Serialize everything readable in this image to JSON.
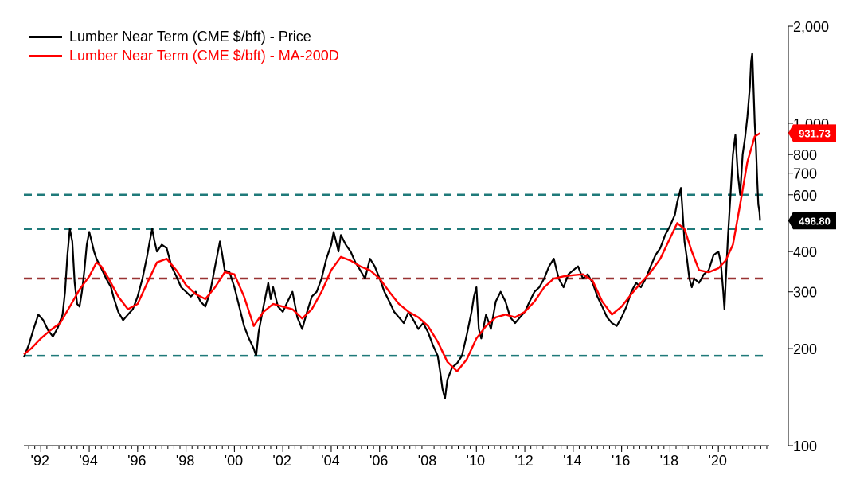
{
  "chart_data": {
    "type": "line",
    "title": "",
    "xlabel": "",
    "ylabel": "",
    "y_scale": "log",
    "ylim": [
      100,
      2000
    ],
    "xlim": [
      1991.3,
      2022.1
    ],
    "y_ticks": [
      {
        "value": 2000,
        "label": "2,000"
      },
      {
        "value": 1000,
        "label": "1,000"
      },
      {
        "value": 800,
        "label": "800"
      },
      {
        "value": 700,
        "label": "700"
      },
      {
        "value": 600,
        "label": "600"
      },
      {
        "value": 400,
        "label": "400"
      },
      {
        "value": 300,
        "label": "300"
      },
      {
        "value": 200,
        "label": "200"
      },
      {
        "value": 100,
        "label": "100"
      }
    ],
    "x_ticks": [
      {
        "value": 1992,
        "label": "'92"
      },
      {
        "value": 1994,
        "label": "'94"
      },
      {
        "value": 1996,
        "label": "'96"
      },
      {
        "value": 1998,
        "label": "'98"
      },
      {
        "value": 2000,
        "label": "'00"
      },
      {
        "value": 2002,
        "label": "'02"
      },
      {
        "value": 2004,
        "label": "'04"
      },
      {
        "value": 2006,
        "label": "'06"
      },
      {
        "value": 2008,
        "label": "'08"
      },
      {
        "value": 2010,
        "label": "'10"
      },
      {
        "value": 2012,
        "label": "'12"
      },
      {
        "value": 2014,
        "label": "'14"
      },
      {
        "value": 2016,
        "label": "'16"
      },
      {
        "value": 2018,
        "label": "'18"
      },
      {
        "value": 2020,
        "label": "'20"
      }
    ],
    "legend_position": "top-left",
    "series": [
      {
        "name": "Lumber Near Term (CME $/bft) - Price",
        "color": "#000000",
        "points": [
          [
            1991.3,
            188
          ],
          [
            1991.5,
            205
          ],
          [
            1991.7,
            230
          ],
          [
            1991.9,
            255
          ],
          [
            1992.1,
            245
          ],
          [
            1992.3,
            228
          ],
          [
            1992.5,
            218
          ],
          [
            1992.7,
            232
          ],
          [
            1992.9,
            255
          ],
          [
            1993.0,
            300
          ],
          [
            1993.1,
            390
          ],
          [
            1993.2,
            470
          ],
          [
            1993.3,
            430
          ],
          [
            1993.4,
            320
          ],
          [
            1993.5,
            275
          ],
          [
            1993.6,
            270
          ],
          [
            1993.7,
            300
          ],
          [
            1993.8,
            350
          ],
          [
            1993.9,
            420
          ],
          [
            1994.0,
            460
          ],
          [
            1994.1,
            430
          ],
          [
            1994.2,
            400
          ],
          [
            1994.3,
            380
          ],
          [
            1994.5,
            355
          ],
          [
            1994.7,
            330
          ],
          [
            1994.9,
            310
          ],
          [
            1995.0,
            290
          ],
          [
            1995.2,
            260
          ],
          [
            1995.4,
            245
          ],
          [
            1995.6,
            255
          ],
          [
            1995.8,
            265
          ],
          [
            1996.0,
            290
          ],
          [
            1996.2,
            330
          ],
          [
            1996.4,
            390
          ],
          [
            1996.5,
            430
          ],
          [
            1996.6,
            470
          ],
          [
            1996.7,
            430
          ],
          [
            1996.8,
            400
          ],
          [
            1997.0,
            420
          ],
          [
            1997.2,
            410
          ],
          [
            1997.4,
            360
          ],
          [
            1997.6,
            335
          ],
          [
            1997.8,
            310
          ],
          [
            1998.0,
            300
          ],
          [
            1998.2,
            290
          ],
          [
            1998.4,
            300
          ],
          [
            1998.6,
            280
          ],
          [
            1998.8,
            270
          ],
          [
            1999.0,
            300
          ],
          [
            1999.2,
            360
          ],
          [
            1999.4,
            430
          ],
          [
            1999.5,
            390
          ],
          [
            1999.6,
            350
          ],
          [
            1999.8,
            345
          ],
          [
            2000.0,
            310
          ],
          [
            2000.2,
            270
          ],
          [
            2000.4,
            235
          ],
          [
            2000.6,
            215
          ],
          [
            2000.8,
            200
          ],
          [
            2000.9,
            190
          ],
          [
            2001.0,
            225
          ],
          [
            2001.2,
            270
          ],
          [
            2001.4,
            320
          ],
          [
            2001.5,
            285
          ],
          [
            2001.6,
            310
          ],
          [
            2001.8,
            270
          ],
          [
            2002.0,
            260
          ],
          [
            2002.2,
            280
          ],
          [
            2002.4,
            300
          ],
          [
            2002.6,
            250
          ],
          [
            2002.8,
            230
          ],
          [
            2003.0,
            260
          ],
          [
            2003.2,
            290
          ],
          [
            2003.4,
            300
          ],
          [
            2003.6,
            330
          ],
          [
            2003.8,
            380
          ],
          [
            2004.0,
            420
          ],
          [
            2004.1,
            460
          ],
          [
            2004.2,
            430
          ],
          [
            2004.3,
            400
          ],
          [
            2004.4,
            450
          ],
          [
            2004.6,
            420
          ],
          [
            2004.8,
            400
          ],
          [
            2005.0,
            370
          ],
          [
            2005.2,
            350
          ],
          [
            2005.4,
            330
          ],
          [
            2005.6,
            380
          ],
          [
            2005.8,
            360
          ],
          [
            2006.0,
            330
          ],
          [
            2006.2,
            300
          ],
          [
            2006.4,
            280
          ],
          [
            2006.6,
            260
          ],
          [
            2006.8,
            250
          ],
          [
            2007.0,
            240
          ],
          [
            2007.2,
            260
          ],
          [
            2007.4,
            245
          ],
          [
            2007.6,
            230
          ],
          [
            2007.8,
            240
          ],
          [
            2008.0,
            225
          ],
          [
            2008.2,
            205
          ],
          [
            2008.4,
            190
          ],
          [
            2008.5,
            170
          ],
          [
            2008.6,
            150
          ],
          [
            2008.7,
            140
          ],
          [
            2008.8,
            160
          ],
          [
            2009.0,
            175
          ],
          [
            2009.2,
            180
          ],
          [
            2009.4,
            190
          ],
          [
            2009.6,
            220
          ],
          [
            2009.8,
            260
          ],
          [
            2009.9,
            290
          ],
          [
            2010.0,
            310
          ],
          [
            2010.1,
            230
          ],
          [
            2010.2,
            215
          ],
          [
            2010.4,
            255
          ],
          [
            2010.6,
            230
          ],
          [
            2010.8,
            280
          ],
          [
            2011.0,
            300
          ],
          [
            2011.2,
            280
          ],
          [
            2011.4,
            250
          ],
          [
            2011.6,
            240
          ],
          [
            2011.8,
            250
          ],
          [
            2012.0,
            260
          ],
          [
            2012.2,
            280
          ],
          [
            2012.4,
            300
          ],
          [
            2012.6,
            310
          ],
          [
            2012.8,
            330
          ],
          [
            2013.0,
            360
          ],
          [
            2013.2,
            380
          ],
          [
            2013.4,
            330
          ],
          [
            2013.6,
            310
          ],
          [
            2013.8,
            340
          ],
          [
            2014.0,
            350
          ],
          [
            2014.2,
            360
          ],
          [
            2014.4,
            330
          ],
          [
            2014.6,
            340
          ],
          [
            2014.8,
            320
          ],
          [
            2015.0,
            290
          ],
          [
            2015.2,
            270
          ],
          [
            2015.4,
            250
          ],
          [
            2015.6,
            240
          ],
          [
            2015.8,
            235
          ],
          [
            2016.0,
            250
          ],
          [
            2016.2,
            270
          ],
          [
            2016.4,
            300
          ],
          [
            2016.6,
            320
          ],
          [
            2016.8,
            310
          ],
          [
            2017.0,
            330
          ],
          [
            2017.2,
            360
          ],
          [
            2017.4,
            390
          ],
          [
            2017.6,
            410
          ],
          [
            2017.8,
            450
          ],
          [
            2018.0,
            480
          ],
          [
            2018.2,
            520
          ],
          [
            2018.3,
            570
          ],
          [
            2018.4,
            610
          ],
          [
            2018.45,
            630
          ],
          [
            2018.5,
            560
          ],
          [
            2018.6,
            430
          ],
          [
            2018.7,
            380
          ],
          [
            2018.8,
            330
          ],
          [
            2018.9,
            310
          ],
          [
            2019.0,
            330
          ],
          [
            2019.2,
            320
          ],
          [
            2019.4,
            340
          ],
          [
            2019.6,
            350
          ],
          [
            2019.8,
            390
          ],
          [
            2020.0,
            400
          ],
          [
            2020.1,
            370
          ],
          [
            2020.2,
            300
          ],
          [
            2020.25,
            265
          ],
          [
            2020.3,
            320
          ],
          [
            2020.4,
            450
          ],
          [
            2020.5,
            600
          ],
          [
            2020.6,
            800
          ],
          [
            2020.7,
            920
          ],
          [
            2020.8,
            700
          ],
          [
            2020.9,
            600
          ],
          [
            2021.0,
            800
          ],
          [
            2021.1,
            900
          ],
          [
            2021.2,
            1050
          ],
          [
            2021.3,
            1300
          ],
          [
            2021.35,
            1550
          ],
          [
            2021.4,
            1650
          ],
          [
            2021.45,
            1300
          ],
          [
            2021.5,
            1000
          ],
          [
            2021.55,
            850
          ],
          [
            2021.6,
            680
          ],
          [
            2021.65,
            560
          ],
          [
            2021.7,
            530
          ],
          [
            2021.72,
            498.8
          ]
        ]
      },
      {
        "name": "Lumber Near Term (CME $/bft) - MA-200D",
        "color": "#ff0000",
        "points": [
          [
            1991.3,
            192
          ],
          [
            1991.6,
            200
          ],
          [
            1992.0,
            215
          ],
          [
            1992.4,
            228
          ],
          [
            1992.8,
            240
          ],
          [
            1993.2,
            270
          ],
          [
            1993.6,
            305
          ],
          [
            1994.0,
            335
          ],
          [
            1994.3,
            370
          ],
          [
            1994.5,
            360
          ],
          [
            1994.8,
            330
          ],
          [
            1995.2,
            290
          ],
          [
            1995.6,
            265
          ],
          [
            1996.0,
            275
          ],
          [
            1996.4,
            320
          ],
          [
            1996.8,
            370
          ],
          [
            1997.2,
            380
          ],
          [
            1997.6,
            350
          ],
          [
            1998.0,
            315
          ],
          [
            1998.4,
            295
          ],
          [
            1998.8,
            285
          ],
          [
            1999.2,
            310
          ],
          [
            1999.6,
            345
          ],
          [
            2000.0,
            340
          ],
          [
            2000.4,
            290
          ],
          [
            2000.8,
            235
          ],
          [
            2001.2,
            260
          ],
          [
            2001.6,
            275
          ],
          [
            2002.0,
            270
          ],
          [
            2002.4,
            265
          ],
          [
            2002.8,
            248
          ],
          [
            2003.2,
            265
          ],
          [
            2003.6,
            300
          ],
          [
            2004.0,
            350
          ],
          [
            2004.4,
            385
          ],
          [
            2004.8,
            375
          ],
          [
            2005.2,
            360
          ],
          [
            2005.6,
            350
          ],
          [
            2006.0,
            330
          ],
          [
            2006.4,
            300
          ],
          [
            2006.8,
            275
          ],
          [
            2007.2,
            260
          ],
          [
            2007.6,
            250
          ],
          [
            2008.0,
            235
          ],
          [
            2008.4,
            210
          ],
          [
            2008.8,
            182
          ],
          [
            2009.2,
            170
          ],
          [
            2009.6,
            185
          ],
          [
            2010.0,
            215
          ],
          [
            2010.4,
            235
          ],
          [
            2010.8,
            250
          ],
          [
            2011.2,
            255
          ],
          [
            2011.6,
            250
          ],
          [
            2012.0,
            260
          ],
          [
            2012.4,
            280
          ],
          [
            2012.8,
            310
          ],
          [
            2013.2,
            330
          ],
          [
            2013.6,
            335
          ],
          [
            2014.0,
            338
          ],
          [
            2014.4,
            340
          ],
          [
            2014.8,
            325
          ],
          [
            2015.2,
            280
          ],
          [
            2015.6,
            255
          ],
          [
            2016.0,
            270
          ],
          [
            2016.4,
            295
          ],
          [
            2016.8,
            320
          ],
          [
            2017.2,
            345
          ],
          [
            2017.6,
            380
          ],
          [
            2018.0,
            440
          ],
          [
            2018.3,
            490
          ],
          [
            2018.6,
            470
          ],
          [
            2018.9,
            400
          ],
          [
            2019.2,
            350
          ],
          [
            2019.6,
            345
          ],
          [
            2020.0,
            355
          ],
          [
            2020.3,
            375
          ],
          [
            2020.6,
            420
          ],
          [
            2020.9,
            560
          ],
          [
            2021.2,
            760
          ],
          [
            2021.5,
            910
          ],
          [
            2021.72,
            931.73
          ]
        ]
      }
    ],
    "reference_lines": [
      {
        "value": 600,
        "color": "#1f7a7a",
        "style": "dashed"
      },
      {
        "value": 470,
        "color": "#1f7a7a",
        "style": "dashed"
      },
      {
        "value": 330,
        "color": "#993333",
        "style": "dashed"
      },
      {
        "value": 190,
        "color": "#1f7a7a",
        "style": "dashed"
      }
    ],
    "value_badges": [
      {
        "label": "931.73",
        "value": 931.73,
        "color": "#ff0000"
      },
      {
        "label": "498.80",
        "value": 498.8,
        "color": "#000000"
      }
    ]
  }
}
